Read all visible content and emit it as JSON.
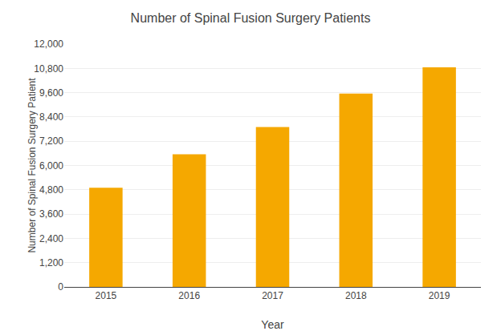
{
  "chart_data": {
    "type": "bar",
    "title": "Number of Spinal Fusion Surgery Patients",
    "xlabel": "Year",
    "ylabel": "Number of Spinal Fusion Surgery Patient",
    "categories": [
      "2015",
      "2016",
      "2017",
      "2018",
      "2019"
    ],
    "values": [
      4900,
      6550,
      7900,
      9550,
      10850
    ],
    "color": "#F5A800",
    "ylim": [
      0,
      12000
    ],
    "yticks": [
      0,
      {
        "value": 1200,
        "label": "1,200"
      },
      {
        "value": 2400,
        "label": "2,400"
      },
      {
        "value": 3600,
        "label": "3,600"
      },
      {
        "value": 4800,
        "label": "4,800"
      },
      {
        "value": 6000,
        "label": "6,000"
      },
      {
        "value": 7200,
        "label": "7,200"
      },
      {
        "value": 8400,
        "label": "8,400"
      },
      {
        "value": 9600,
        "label": "9,600"
      },
      {
        "value": 10800,
        "label": "10,800"
      },
      {
        "value": 12000,
        "label": "12,000"
      }
    ],
    "grid": true
  }
}
